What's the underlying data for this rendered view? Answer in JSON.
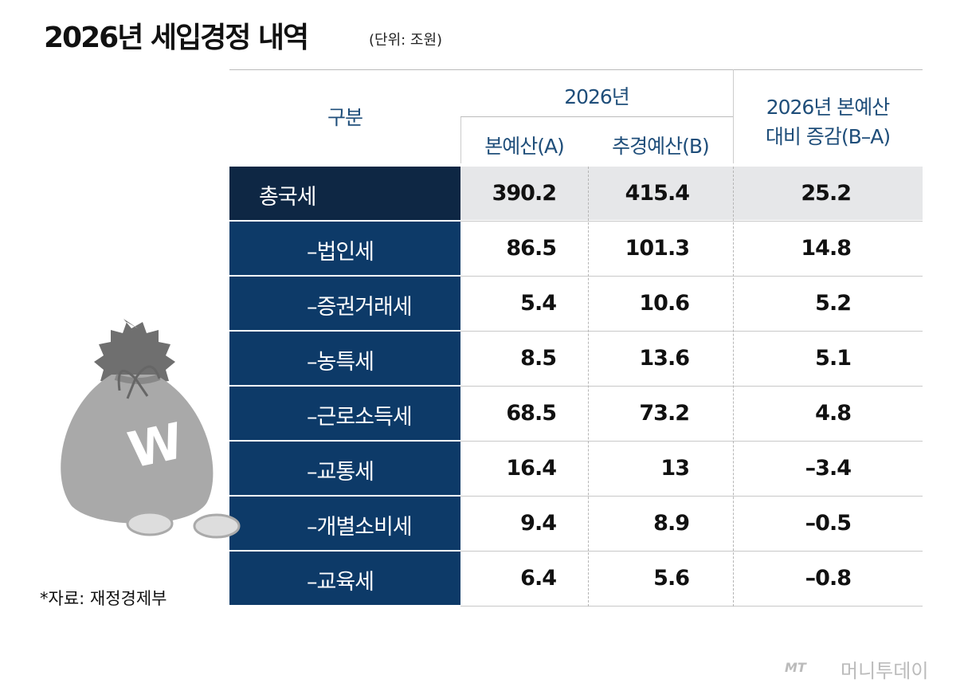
{
  "header": {
    "title": "2026년 세입경정 내역",
    "unit": "(단위: 조원)"
  },
  "table": {
    "columns": {
      "label": "구분",
      "year": "2026년",
      "a": "본예산(A)",
      "b": "추경예산(B)",
      "diff": [
        "2026년 본예산",
        "대비 증감(B–A)"
      ]
    },
    "rows": [
      [
        "총국세",
        "390.2",
        "415.4",
        "25.2"
      ],
      [
        "–법인세",
        "86.5",
        "101.3",
        "14.8"
      ],
      [
        "–증권거래세",
        "5.4",
        "10.6",
        "5.2"
      ],
      [
        "–농특세",
        "8.5",
        "13.6",
        "5.1"
      ],
      [
        "–근로소득세",
        "68.5",
        "73.2",
        "4.8"
      ],
      [
        "–교통세",
        "16.4",
        "13",
        "–3.4"
      ],
      [
        "–개별소비세",
        "9.4",
        "8.9",
        "–0.5"
      ],
      [
        "–교육세",
        "6.4",
        "5.6",
        "–0.8"
      ]
    ]
  },
  "footer": {
    "source": "*자료: 재정경제부",
    "logo": "MT",
    "brand": "머니투데이"
  }
}
